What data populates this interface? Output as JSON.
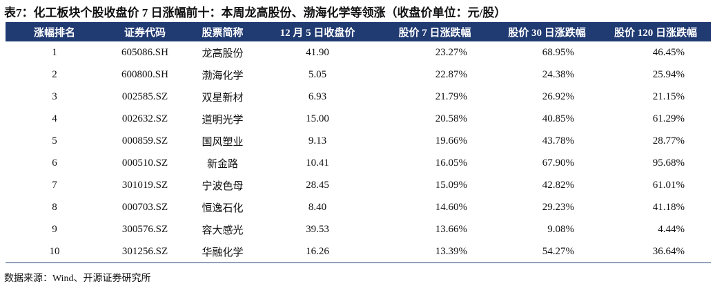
{
  "title": "表7：化工板块个股收盘价 7 日涨幅前十：本周龙高股份、渤海化学等领涨（收盘价单位：元/股）",
  "table": {
    "headers": [
      "涨幅排名",
      "证券代码",
      "股票简称",
      "12 月 5 日收盘价",
      "股价 7 日涨跌幅",
      "股价 30 日涨跌幅",
      "股价 120 日涨跌幅"
    ],
    "rows": [
      [
        "1",
        "605086.SH",
        "龙高股份",
        "41.90",
        "23.27%",
        "68.95%",
        "46.45%"
      ],
      [
        "2",
        "600800.SH",
        "渤海化学",
        "5.05",
        "22.87%",
        "24.38%",
        "25.94%"
      ],
      [
        "3",
        "002585.SZ",
        "双星新材",
        "6.93",
        "21.79%",
        "26.92%",
        "21.15%"
      ],
      [
        "4",
        "002632.SZ",
        "道明光学",
        "15.00",
        "20.58%",
        "40.85%",
        "61.29%"
      ],
      [
        "5",
        "000859.SZ",
        "国风塑业",
        "9.13",
        "19.66%",
        "43.78%",
        "28.77%"
      ],
      [
        "6",
        "000510.SZ",
        "新金路",
        "10.41",
        "16.05%",
        "67.90%",
        "95.68%"
      ],
      [
        "7",
        "301019.SZ",
        "宁波色母",
        "28.45",
        "15.09%",
        "42.82%",
        "61.01%"
      ],
      [
        "8",
        "000703.SZ",
        "恒逸石化",
        "8.40",
        "14.60%",
        "29.23%",
        "41.18%"
      ],
      [
        "9",
        "300576.SZ",
        "容大感光",
        "39.53",
        "13.66%",
        "9.08%",
        "4.44%"
      ],
      [
        "10",
        "301256.SZ",
        "华融化学",
        "16.26",
        "13.39%",
        "54.27%",
        "36.64%"
      ]
    ]
  },
  "source": "数据来源：Wind、开源证券研究所"
}
